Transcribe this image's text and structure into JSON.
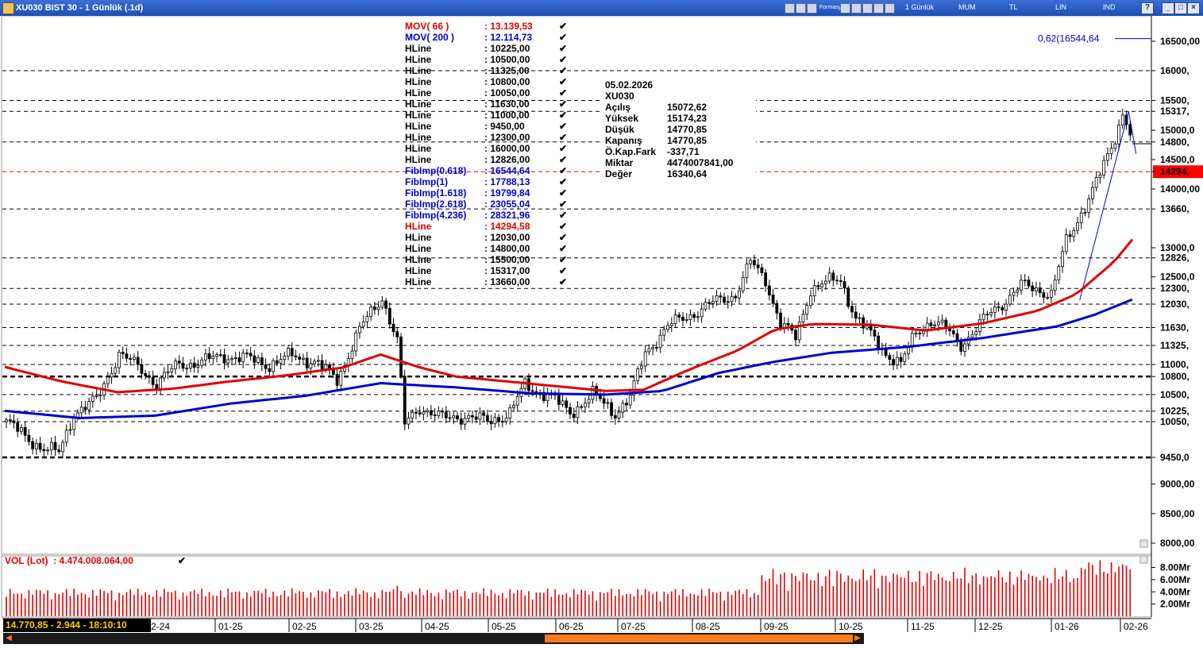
{
  "window": {
    "title": "XU030 BIST 30 - 1 Günlük (.1d)",
    "toolbar": [
      "1 Günlük",
      "MUM",
      "TL",
      "LIN",
      "IND"
    ],
    "toolbar_small": "Formasyon"
  },
  "colors": {
    "mov66": "#e00000",
    "mov200": "#0000d0",
    "hline": "#000000",
    "fib": "#0000d0",
    "hline_red": "#e00000",
    "volume": "#e00000",
    "price_box": "#ff0000"
  },
  "legend": [
    {
      "name": "MOV( 66 )",
      "value": ": 13.139,53",
      "color": "#e00000"
    },
    {
      "name": "MOV( 200 )",
      "value": ": 12.114,73",
      "color": "#0000d0"
    },
    {
      "name": "HLine",
      "value": ": 10225,00",
      "color": "#000"
    },
    {
      "name": "HLine",
      "value": ": 10500,00",
      "color": "#000"
    },
    {
      "name": "HLine",
      "value": ": 11325,00",
      "color": "#000"
    },
    {
      "name": "HLine",
      "value": ": 10800,00",
      "color": "#000"
    },
    {
      "name": "HLine",
      "value": ": 10050,00",
      "color": "#000"
    },
    {
      "name": "HLine",
      "value": ": 11630,00",
      "color": "#000"
    },
    {
      "name": "HLine",
      "value": ": 11000,00",
      "color": "#000"
    },
    {
      "name": "HLine",
      "value": ": 9450,00",
      "color": "#000"
    },
    {
      "name": "HLine",
      "value": ": 12300,00",
      "color": "#000"
    },
    {
      "name": "HLine",
      "value": ": 16000,00",
      "color": "#000"
    },
    {
      "name": "HLine",
      "value": ": 12826,00",
      "color": "#000"
    },
    {
      "name": "FibImp(0.618)",
      "value": ": 16544,64",
      "color": "#0000d0"
    },
    {
      "name": "FibImp(1)",
      "value": ": 17788,13",
      "color": "#0000d0"
    },
    {
      "name": "FibImp(1.618)",
      "value": ": 19799,84",
      "color": "#0000d0"
    },
    {
      "name": "FibImp(2.618)",
      "value": ": 23055,04",
      "color": "#0000d0"
    },
    {
      "name": "FibImp(4.236)",
      "value": ": 28321,96",
      "color": "#0000d0"
    },
    {
      "name": "HLine",
      "value": ": 14294,58",
      "color": "#e00000"
    },
    {
      "name": "HLine",
      "value": ": 12030,00",
      "color": "#000"
    },
    {
      "name": "HLine",
      "value": ": 14800,00",
      "color": "#000"
    },
    {
      "name": "HLine",
      "value": ": 15500,00",
      "color": "#000"
    },
    {
      "name": "HLine",
      "value": ": 15317,00",
      "color": "#000"
    },
    {
      "name": "HLine",
      "value": ": 13660,00",
      "color": "#000"
    }
  ],
  "info": {
    "date": "05.02.2026",
    "symbol": "XU030",
    "rows": [
      {
        "k": "Açılış",
        "v": "15072,62"
      },
      {
        "k": "Yüksek",
        "v": "15174,23"
      },
      {
        "k": "Düşük",
        "v": "14770,85"
      },
      {
        "k": "Kapanış",
        "v": "14770,85"
      },
      {
        "k": "Ö.Kap.Fark",
        "v": "-337,71"
      },
      {
        "k": "Miktar",
        "v": "4474007841,00"
      },
      {
        "k": "Değer",
        "v": "16340,64"
      }
    ]
  },
  "fib_label": "0,62(16544,64",
  "volume": {
    "label": "VOL (Lot)",
    "value": ": 4.474.008.064,00"
  },
  "status": "14.770,85 - 2.944 - 18:10:10",
  "chart_data": {
    "type": "candlestick",
    "price_axis": {
      "ylim": [
        7900,
        16800
      ],
      "ticks": [
        "16500,00",
        "16000,",
        "15500,",
        "15317,",
        "15000,0",
        "14800,",
        "14500,0",
        "14294,",
        "14000,00",
        "13660,",
        "13000,0",
        "12826,",
        "12500,0",
        "12300,",
        "12030,",
        "11630,",
        "11325,",
        "11000,",
        "10800,",
        "10500,",
        "10225,",
        "10050,",
        "9450,0",
        "9000,00",
        "8500,00",
        "8000,00"
      ],
      "tick_values": [
        16500,
        16000,
        15500,
        15317,
        15000,
        14800,
        14500,
        14294,
        14000,
        13660,
        13000,
        12826,
        12500,
        12300,
        12030,
        11630,
        11325,
        11000,
        10800,
        10500,
        10225,
        10050,
        9450,
        9000,
        8500,
        8000
      ],
      "highlight": {
        "value": 14294,
        "label": "14294,"
      }
    },
    "x_labels": [
      "2-24",
      "01-25",
      "02-25",
      "03-25",
      "04-25",
      "05-25",
      "06-25",
      "07-25",
      "08-25",
      "09-25",
      "10-25",
      "11-25",
      "12-25",
      "01-26",
      "02-26"
    ],
    "hlines": [
      16000,
      15500,
      15317,
      14800,
      14294.58,
      13660,
      12826,
      12300,
      12030,
      11630,
      11325,
      11000,
      10800,
      10500,
      10225,
      10050,
      9450
    ],
    "hline_bold": [
      10800,
      9450
    ],
    "hline_red": 14294.58,
    "fib_level": 16544.64,
    "series_anchors": {
      "price": [
        [
          0,
          10050
        ],
        [
          5,
          9800
        ],
        [
          10,
          9600
        ],
        [
          14,
          9520
        ],
        [
          18,
          10200
        ],
        [
          24,
          10400
        ],
        [
          30,
          11200
        ],
        [
          36,
          10900
        ],
        [
          40,
          10700
        ],
        [
          46,
          11000
        ],
        [
          52,
          11050
        ],
        [
          58,
          11150
        ],
        [
          64,
          11100
        ],
        [
          70,
          11000
        ],
        [
          76,
          11150
        ],
        [
          82,
          11050
        ],
        [
          88,
          10750
        ],
        [
          94,
          11600
        ],
        [
          100,
          12150
        ],
        [
          104,
          11400
        ],
        [
          106,
          10000
        ],
        [
          110,
          10300
        ],
        [
          116,
          10100
        ],
        [
          122,
          10150
        ],
        [
          128,
          10050
        ],
        [
          134,
          10200
        ],
        [
          138,
          10650
        ],
        [
          144,
          10500
        ],
        [
          150,
          10200
        ],
        [
          156,
          10500
        ],
        [
          162,
          10200
        ],
        [
          166,
          10450
        ],
        [
          170,
          11200
        ],
        [
          176,
          11650
        ],
        [
          182,
          11850
        ],
        [
          188,
          12050
        ],
        [
          194,
          12200
        ],
        [
          198,
          12750
        ],
        [
          202,
          12450
        ],
        [
          206,
          11700
        ],
        [
          210,
          11450
        ],
        [
          214,
          12300
        ],
        [
          218,
          12400
        ],
        [
          222,
          12450
        ],
        [
          226,
          11800
        ],
        [
          230,
          11500
        ],
        [
          234,
          11200
        ],
        [
          238,
          11000
        ],
        [
          242,
          11550
        ],
        [
          246,
          11750
        ],
        [
          250,
          11600
        ],
        [
          254,
          11350
        ],
        [
          258,
          11600
        ],
        [
          262,
          11900
        ],
        [
          266,
          12100
        ],
        [
          270,
          12350
        ],
        [
          274,
          12300
        ],
        [
          278,
          12200
        ],
        [
          282,
          13100
        ],
        [
          286,
          13600
        ],
        [
          290,
          14100
        ],
        [
          294,
          14700
        ],
        [
          297,
          15300
        ],
        [
          300,
          14800
        ]
      ],
      "mov66": [
        [
          0,
          10960
        ],
        [
          15,
          10720
        ],
        [
          30,
          10540
        ],
        [
          45,
          10600
        ],
        [
          60,
          10720
        ],
        [
          75,
          10820
        ],
        [
          90,
          10950
        ],
        [
          100,
          11170
        ],
        [
          110,
          10960
        ],
        [
          120,
          10800
        ],
        [
          140,
          10680
        ],
        [
          160,
          10560
        ],
        [
          170,
          10580
        ],
        [
          180,
          10860
        ],
        [
          195,
          11240
        ],
        [
          205,
          11600
        ],
        [
          215,
          11690
        ],
        [
          230,
          11680
        ],
        [
          245,
          11580
        ],
        [
          260,
          11700
        ],
        [
          275,
          11920
        ],
        [
          285,
          12200
        ],
        [
          295,
          12750
        ],
        [
          300,
          13140
        ]
      ],
      "mov200": [
        [
          0,
          10230
        ],
        [
          20,
          10110
        ],
        [
          40,
          10150
        ],
        [
          60,
          10350
        ],
        [
          80,
          10480
        ],
        [
          100,
          10690
        ],
        [
          120,
          10620
        ],
        [
          140,
          10520
        ],
        [
          160,
          10500
        ],
        [
          175,
          10560
        ],
        [
          190,
          10860
        ],
        [
          205,
          11050
        ],
        [
          220,
          11200
        ],
        [
          240,
          11300
        ],
        [
          260,
          11450
        ],
        [
          280,
          11650
        ],
        [
          290,
          11850
        ],
        [
          300,
          12110
        ]
      ]
    },
    "volume_axis": {
      "ticks": [
        "8.00Mr",
        "6.00Mr",
        "4.00Mr",
        "2.00Mr"
      ],
      "tick_values": [
        8,
        6,
        4,
        2
      ],
      "ylim": [
        0,
        9.5
      ]
    }
  }
}
